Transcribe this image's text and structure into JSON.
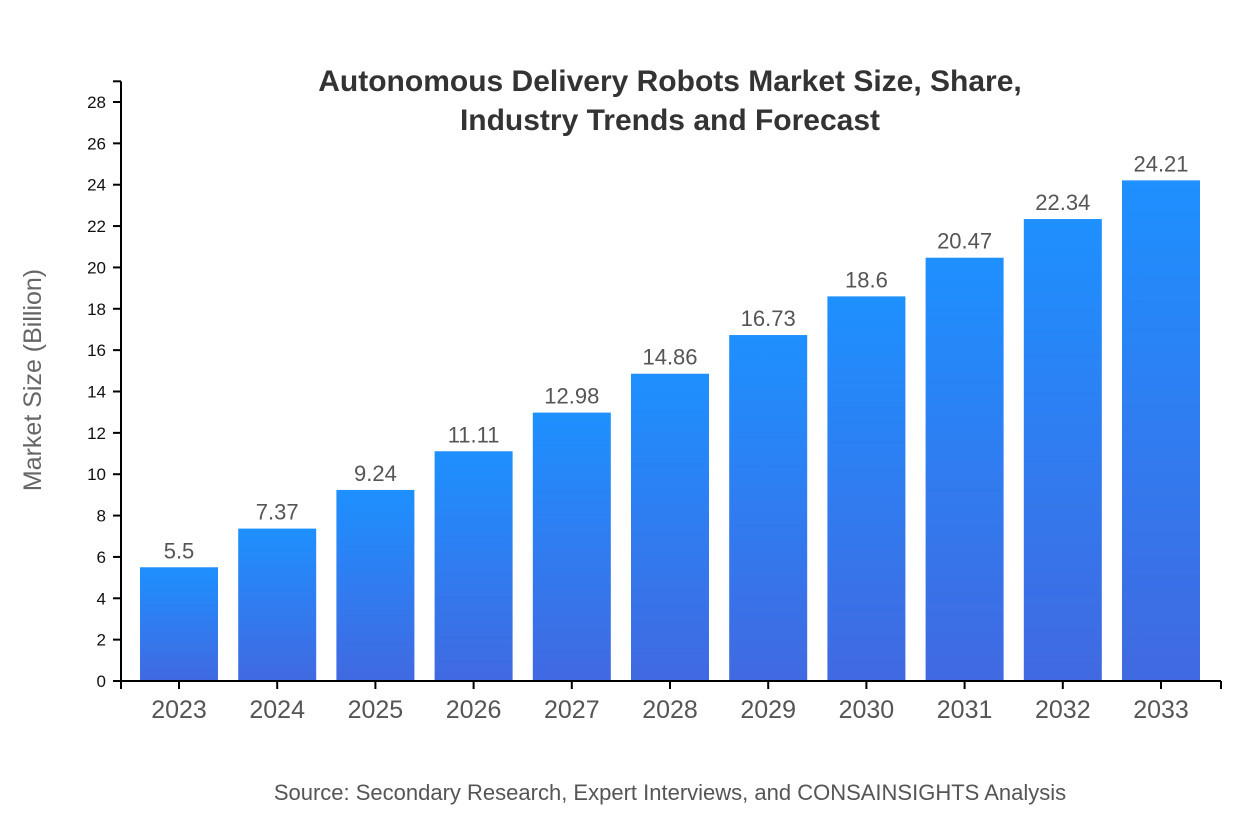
{
  "chart_data": {
    "type": "bar",
    "title_lines": [
      "Autonomous Delivery Robots Market Size, Share,",
      "Industry Trends and Forecast"
    ],
    "xlabel": "",
    "ylabel": "Market Size (Billion)",
    "categories": [
      "2023",
      "2024",
      "2025",
      "2026",
      "2027",
      "2028",
      "2029",
      "2030",
      "2031",
      "2032",
      "2033"
    ],
    "values": [
      5.5,
      7.37,
      9.24,
      11.11,
      12.98,
      14.86,
      16.73,
      18.6,
      20.47,
      22.34,
      24.21
    ],
    "ylim": [
      0,
      29
    ],
    "yticks": [
      0,
      2,
      4,
      6,
      8,
      10,
      12,
      14,
      16,
      18,
      20,
      22,
      24,
      26,
      28
    ],
    "grid": false,
    "colors": {
      "bar_top": "#1e90ff",
      "bar_bottom": "#4169e1"
    }
  },
  "source": "Source: Secondary Research, Expert Interviews, and CONSAINSIGHTS Analysis"
}
